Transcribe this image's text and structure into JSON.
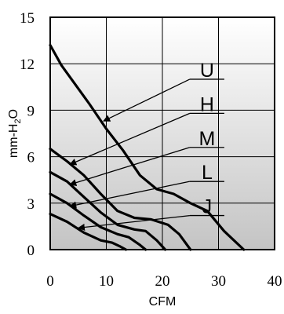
{
  "chart_data": {
    "type": "line",
    "xlabel": "CFM",
    "ylabel": "mm-H2O",
    "ylabel_parts": {
      "base": "mm-H",
      "sub": "2",
      "tail": "O"
    },
    "xlim": [
      0,
      40
    ],
    "ylim": [
      0,
      15
    ],
    "x_ticks": [
      0,
      10,
      20,
      30,
      40
    ],
    "y_ticks": [
      0,
      3,
      6,
      9,
      12,
      15
    ],
    "grid": true,
    "background": "gradient-gray",
    "line_color": "#000000",
    "series": [
      {
        "name": "U",
        "points": [
          [
            0,
            13.2
          ],
          [
            2,
            11.9
          ],
          [
            4,
            10.9
          ],
          [
            7,
            9.4
          ],
          [
            10,
            7.8
          ],
          [
            13,
            6.4
          ],
          [
            16,
            4.8
          ],
          [
            19,
            3.9
          ],
          [
            22,
            3.6
          ],
          [
            25,
            3.0
          ],
          [
            28,
            2.5
          ],
          [
            31,
            1.2
          ],
          [
            34.5,
            0
          ]
        ]
      },
      {
        "name": "H",
        "points": [
          [
            0,
            6.5
          ],
          [
            3,
            5.7
          ],
          [
            6,
            4.8
          ],
          [
            9,
            3.6
          ],
          [
            12,
            2.5
          ],
          [
            15,
            2.05
          ],
          [
            18,
            1.95
          ],
          [
            21,
            1.6
          ],
          [
            23,
            1.0
          ],
          [
            25,
            0
          ]
        ]
      },
      {
        "name": "M",
        "points": [
          [
            0,
            5.0
          ],
          [
            3,
            4.4
          ],
          [
            6,
            3.4
          ],
          [
            9,
            2.4
          ],
          [
            12,
            1.6
          ],
          [
            15,
            1.3
          ],
          [
            17,
            1.2
          ],
          [
            19,
            0.6
          ],
          [
            20.5,
            0
          ]
        ]
      },
      {
        "name": "L",
        "points": [
          [
            0,
            3.6
          ],
          [
            3,
            3.0
          ],
          [
            6,
            2.2
          ],
          [
            9,
            1.45
          ],
          [
            12,
            1.0
          ],
          [
            14,
            0.8
          ],
          [
            16,
            0.3
          ],
          [
            17,
            0
          ]
        ]
      },
      {
        "name": "J",
        "points": [
          [
            0,
            2.3
          ],
          [
            3,
            1.8
          ],
          [
            6,
            1.1
          ],
          [
            9,
            0.6
          ],
          [
            11,
            0.45
          ],
          [
            12.5,
            0.2
          ],
          [
            13.5,
            0
          ]
        ]
      }
    ],
    "annotations": [
      {
        "label": "U",
        "label_x": 26,
        "label_y": 11.0,
        "arrow_to": [
          9.5,
          8.3
        ]
      },
      {
        "label": "H",
        "label_x": 26,
        "label_y": 8.8,
        "arrow_to": [
          3.5,
          5.5
        ]
      },
      {
        "label": "M",
        "label_x": 26,
        "label_y": 6.6,
        "arrow_to": [
          3.5,
          4.2
        ]
      },
      {
        "label": "L",
        "label_x": 26,
        "label_y": 4.4,
        "arrow_to": [
          3.5,
          2.8
        ]
      },
      {
        "label": "J",
        "label_x": 26,
        "label_y": 2.2,
        "arrow_to": [
          5,
          1.4
        ]
      }
    ]
  }
}
